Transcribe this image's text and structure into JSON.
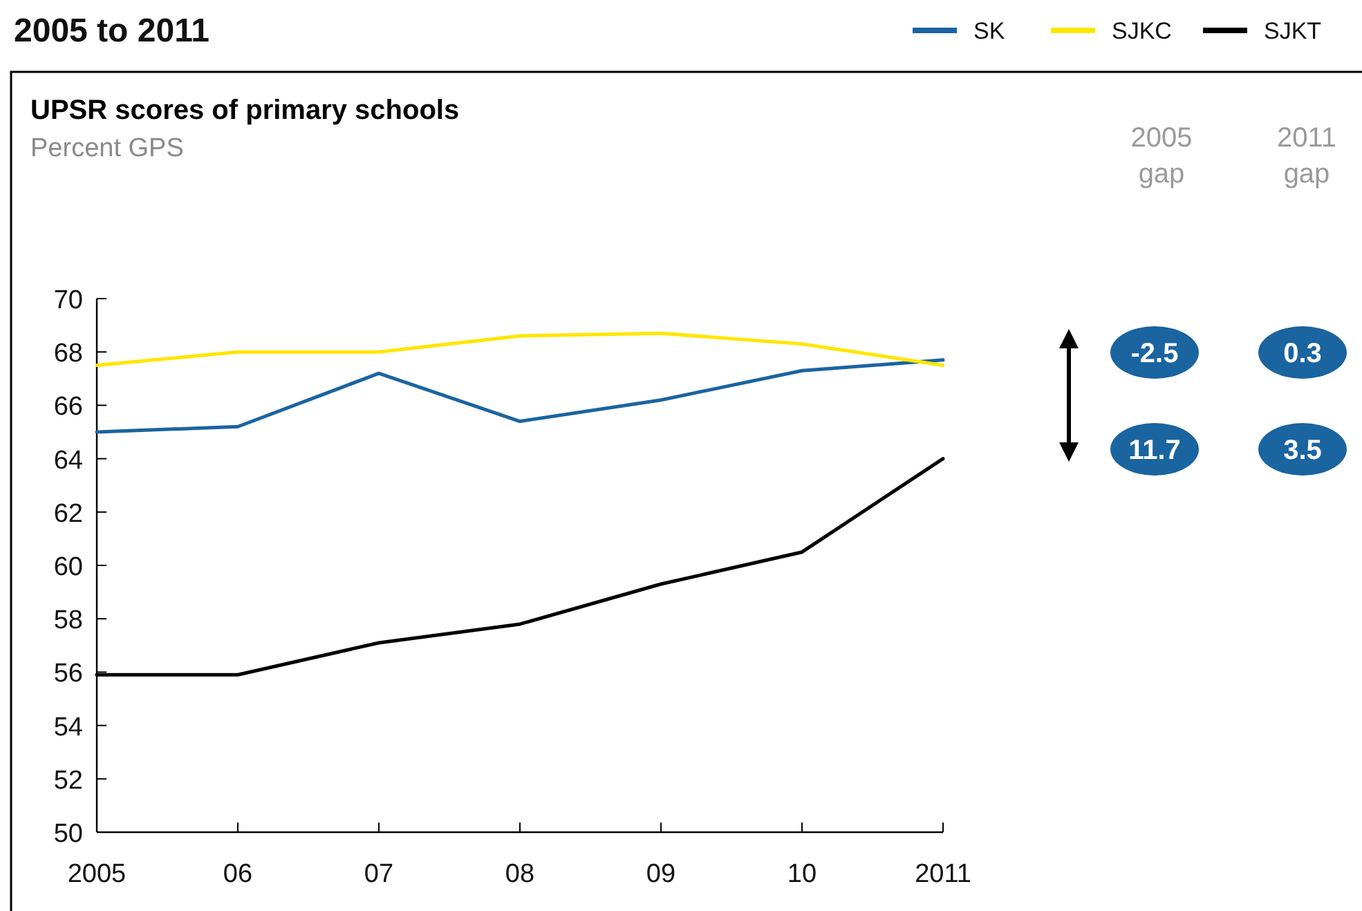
{
  "chart_data": {
    "type": "line",
    "title": "UPSR scores of primary schools",
    "subtitle": "Percent GPS",
    "annotations": [
      "2005 to 2011",
      "2005 gap",
      "2011 gap",
      "-2.5",
      "0.3",
      "11.7",
      "3.5"
    ],
    "x": [
      2005,
      2006,
      2007,
      2008,
      2009,
      2010,
      2011
    ],
    "xlim": [
      2005,
      2011
    ],
    "xticks": [
      2005,
      {
        "value": 2006,
        "label": "06"
      },
      {
        "value": 2007,
        "label": "07"
      },
      {
        "value": 2008,
        "label": "08"
      },
      {
        "value": 2009,
        "label": "09"
      },
      {
        "value": 2010,
        "label": "10"
      },
      2011
    ],
    "ylim": [
      50,
      70
    ],
    "yticks": [
      50,
      52,
      54,
      56,
      58,
      60,
      62,
      64,
      66,
      68,
      70
    ],
    "grid": false,
    "legend": "top right",
    "marker": "none",
    "line_style": "solid",
    "series": [
      {
        "name": "SK",
        "color": "#1a64a0",
        "values": [
          65.0,
          65.2,
          67.2,
          65.4,
          66.2,
          67.3,
          67.7
        ]
      },
      {
        "name": "SJKC",
        "color": "#ffe600",
        "values": [
          67.5,
          68.0,
          68.0,
          68.6,
          68.7,
          68.3,
          67.5
        ]
      },
      {
        "name": "SJKT",
        "color": "#000000",
        "values": [
          55.9,
          55.9,
          57.1,
          57.8,
          59.3,
          60.5,
          64.0
        ]
      }
    ]
  }
}
